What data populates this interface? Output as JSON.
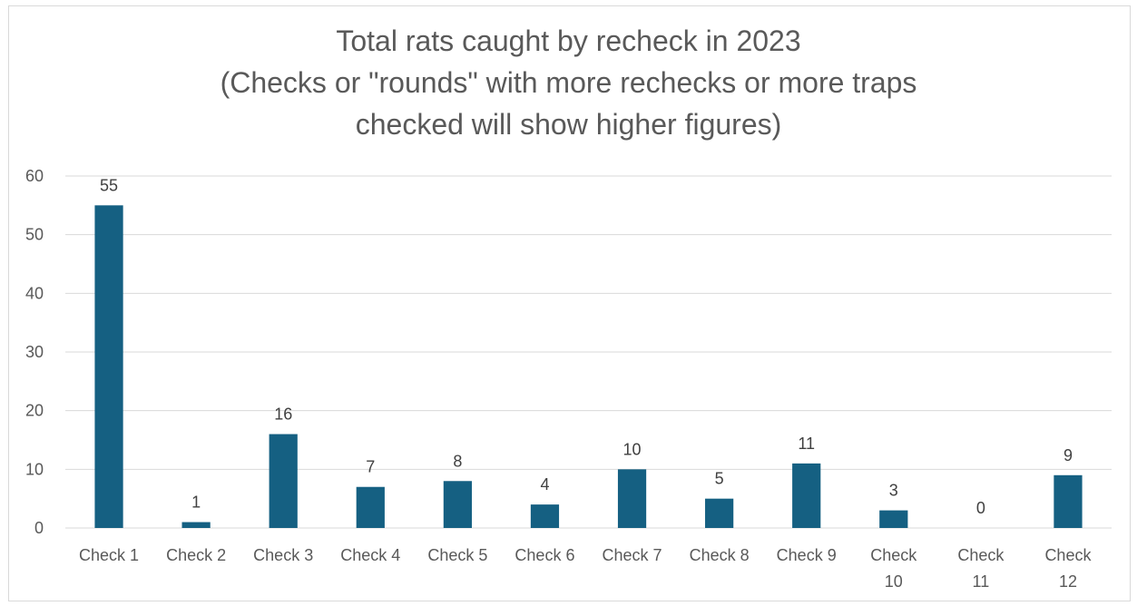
{
  "chart_data": {
    "type": "bar",
    "title_lines": [
      "Total rats caught by recheck in 2023",
      "(Checks or \"rounds\" with more rechecks or more traps",
      "checked will show higher figures)"
    ],
    "categories": [
      [
        "Check 1"
      ],
      [
        "Check 2"
      ],
      [
        "Check 3"
      ],
      [
        "Check 4"
      ],
      [
        "Check 5"
      ],
      [
        "Check 6"
      ],
      [
        "Check 7"
      ],
      [
        "Check 8"
      ],
      [
        "Check 9"
      ],
      [
        "Check",
        "10"
      ],
      [
        "Check",
        "11"
      ],
      [
        "Check",
        "12"
      ]
    ],
    "values": [
      55,
      1,
      16,
      7,
      8,
      4,
      10,
      5,
      11,
      3,
      0,
      9
    ],
    "data_labels": [
      "55",
      "1",
      "16",
      "7",
      "8",
      "4",
      "10",
      "5",
      "11",
      "3",
      "0",
      "9"
    ],
    "ylim": [
      0,
      60
    ],
    "y_ticks": [
      0,
      10,
      20,
      30,
      40,
      50,
      60
    ],
    "y_tick_labels": [
      "0",
      "10",
      "20",
      "30",
      "40",
      "50",
      "60"
    ],
    "grid": true,
    "legend": "none",
    "bar_color": "#156082",
    "grid_color": "#d9d9d9"
  }
}
